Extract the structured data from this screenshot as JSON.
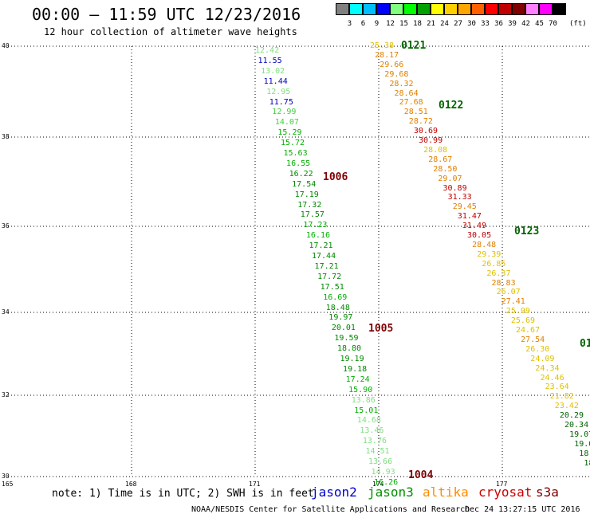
{
  "header": {
    "title": "00:00 – 11:59 UTC 12/23/2016",
    "subtitle": "12 hour collection of altimeter wave heights"
  },
  "scale": {
    "labels": [
      "3",
      "6",
      "9",
      "12",
      "15",
      "18",
      "21",
      "24",
      "27",
      "30",
      "33",
      "36",
      "39",
      "42",
      "45",
      "70"
    ],
    "unit": "(ft)",
    "colors": [
      "#808080",
      "#00ffff",
      "#00bfff",
      "#0000ff",
      "#80ff80",
      "#00ff00",
      "#00a000",
      "#ffff00",
      "#ffd000",
      "#ffa500",
      "#ff6000",
      "#ff0000",
      "#c00000",
      "#800000",
      "#ff80ff",
      "#ff00ff",
      "#000000"
    ]
  },
  "axes": {
    "y_labels": [
      "40",
      "38",
      "36",
      "34",
      "32",
      "30"
    ],
    "x_labels": [
      "165",
      "168",
      "171",
      "174",
      "177"
    ]
  },
  "passes": [
    {
      "label": "0121",
      "color": "#006400"
    },
    {
      "label": "0122",
      "color": "#006400"
    },
    {
      "label": "0123",
      "color": "#006400"
    },
    {
      "label": "01",
      "color": "#006400"
    },
    {
      "label": "1006",
      "color": "#800000"
    },
    {
      "label": "1005",
      "color": "#800000"
    },
    {
      "label": "1004",
      "color": "#800000"
    }
  ],
  "tracks": [
    {
      "name": "west",
      "values": [
        "12.42",
        "11.55",
        "13.02",
        "11.44",
        "12.95",
        "11.75",
        "12.99",
        "14.07",
        "15.29",
        "15.72",
        "15.63",
        "16.55",
        "16.22",
        "17.54",
        "17.19",
        "17.32",
        "17.57",
        "17.23",
        "16.16",
        "17.21",
        "17.44",
        "17.21",
        "17.72",
        "17.51",
        "16.69",
        "18.48",
        "19.97",
        "20.01",
        "19.59",
        "18.80",
        "19.19",
        "19.18",
        "17.24",
        "15.90",
        "13.86",
        "15.01",
        "14.68",
        "13.46",
        "13.76",
        "14.51",
        "13.66",
        "14.93",
        "16.26"
      ],
      "colors": [
        "#80e080",
        "#0000c0",
        "#80e080",
        "#0000c0",
        "#80e080",
        "#0000c0",
        "#40d040",
        "#40d040",
        "#00b000",
        "#00b000",
        "#00b000",
        "#00b000",
        "#008800",
        "#008800",
        "#008800",
        "#008800",
        "#008800",
        "#00b000",
        "#00b000",
        "#008800",
        "#008800",
        "#008800",
        "#008800",
        "#008800",
        "#00b000",
        "#008800",
        "#008800",
        "#008800",
        "#008800",
        "#008800",
        "#008800",
        "#008800",
        "#00b000",
        "#00b000",
        "#80e080",
        "#00b000",
        "#80e080",
        "#80e080",
        "#80e080",
        "#80e080",
        "#80e080",
        "#80e080",
        "#00b000"
      ]
    },
    {
      "name": "east",
      "values": [
        "25.38",
        "28.17",
        "29.66",
        "29.68",
        "28.32",
        "28.64",
        "27.68",
        "28.51",
        "28.72",
        "30.69",
        "30.99",
        "28.08",
        "28.67",
        "28.50",
        "29.07",
        "30.89",
        "31.33",
        "29.45",
        "31.47",
        "31.49",
        "30.05",
        "28.48",
        "29.39",
        "26.85",
        "26.37",
        "28.83",
        "26.07",
        "27.41",
        "25.99",
        "25.69",
        "24.67",
        "27.54",
        "26.30",
        "24.09",
        "24.34",
        "24.46",
        "23.64",
        "21.82",
        "23.42",
        "20.29",
        "20.34",
        "19.07",
        "19.0",
        "18.",
        "18"
      ],
      "colors": [
        "#e0c000",
        "#e08000",
        "#e08000",
        "#e08000",
        "#e08000",
        "#e08000",
        "#e08000",
        "#e08000",
        "#e08000",
        "#c00000",
        "#c00000",
        "#e0c000",
        "#e08000",
        "#e08000",
        "#e08000",
        "#c00000",
        "#c00000",
        "#e08000",
        "#c00000",
        "#c00000",
        "#c00000",
        "#e08000",
        "#e0c000",
        "#e0c000",
        "#e0c000",
        "#e08000",
        "#e0c000",
        "#e08000",
        "#e0c000",
        "#e0c000",
        "#e0c000",
        "#e08000",
        "#e0c000",
        "#e0c000",
        "#e0c000",
        "#e0c000",
        "#e0c000",
        "#e0c000",
        "#e0c000",
        "#006400",
        "#006400",
        "#006400",
        "#006400",
        "#006400",
        "#006400"
      ]
    }
  ],
  "bottom": {
    "note": "note: 1) Time is in UTC; 2) SWH is in feet",
    "satellites": [
      {
        "name": "jason2",
        "color": "#0000cc"
      },
      {
        "name": "jason3",
        "color": "#009000"
      },
      {
        "name": "altika",
        "color": "#ff8c00"
      },
      {
        "name": "cryosat",
        "color": "#cc0000"
      },
      {
        "name": "s3a",
        "color": "#800000"
      }
    ],
    "footer": "NOAA/NESDIS Center for Satellite Applications and Research",
    "stamp": "Dec 24 13:27:15 UTC 2016"
  }
}
